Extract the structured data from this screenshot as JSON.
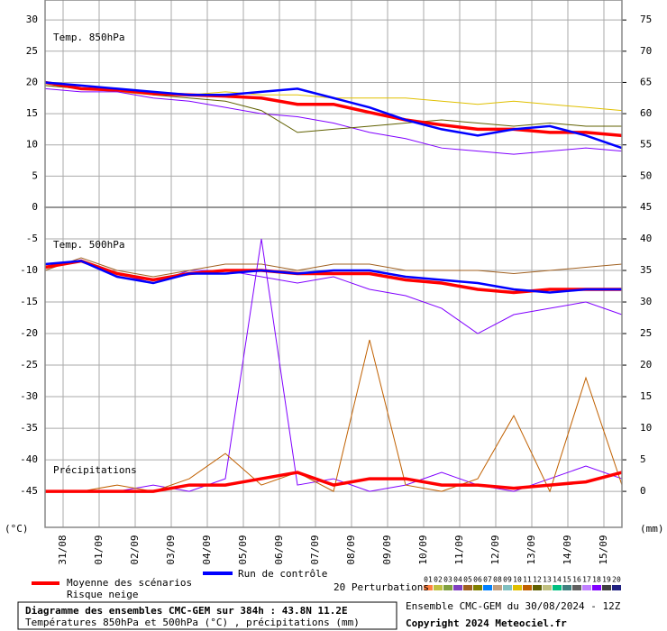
{
  "chart_data": [
    {
      "type": "line",
      "annotation": "Temp. 850hPa",
      "x": [
        0,
        24,
        48,
        72,
        96,
        120,
        144,
        168,
        192,
        216,
        240,
        264,
        288,
        312,
        336,
        360,
        384
      ],
      "xlim": [
        0,
        384
      ],
      "ylim": [
        0,
        33.2
      ],
      "yticks": [
        0,
        5,
        10,
        15,
        20,
        25,
        30
      ],
      "y2lim": [
        45,
        78.2
      ],
      "y2ticks": [
        50,
        55,
        60,
        65,
        70,
        75
      ],
      "grid": true,
      "series": [
        {
          "name": "Moyenne des scénarios",
          "color": "#ff0000",
          "values": [
            20,
            19,
            18.8,
            18.2,
            18,
            17.8,
            17.5,
            16.5,
            16.5,
            15.2,
            14,
            13.2,
            12.5,
            12.5,
            12,
            12,
            11.5
          ]
        },
        {
          "name": "Run de contrôle",
          "color": "#0000ff",
          "values": [
            20,
            19.5,
            19,
            18.5,
            18,
            18,
            18.5,
            19,
            17.5,
            16,
            14,
            12.5,
            11.5,
            12.5,
            13,
            11.5,
            9.5
          ]
        },
        {
          "color": "#e0c000",
          "values": [
            19.5,
            19,
            18.5,
            18,
            18,
            18.5,
            18,
            18,
            17.5,
            17.5,
            17.5,
            17,
            16.5,
            17,
            16.5,
            16,
            15.5
          ]
        },
        {
          "color": "#8000ff",
          "values": [
            19,
            18.5,
            18.5,
            17.5,
            17,
            16,
            15,
            14.5,
            13.5,
            12,
            11,
            9.5,
            9,
            8.5,
            9,
            9.5,
            9
          ]
        },
        {
          "color": "#606000",
          "values": [
            19.5,
            19,
            19,
            18,
            17.5,
            17,
            15.5,
            12,
            12.5,
            13,
            13.5,
            14,
            13.5,
            13,
            13.5,
            13,
            13
          ]
        }
      ]
    },
    {
      "type": "line",
      "annotation": "Temp. 500hPa",
      "annotation2": "Précipitations",
      "left_unit": "(°C)",
      "right_unit": "(mm)",
      "x": [
        0,
        24,
        48,
        72,
        96,
        120,
        144,
        168,
        192,
        216,
        240,
        264,
        288,
        312,
        336,
        360,
        384
      ],
      "xlim": [
        0,
        384
      ],
      "xticks": [
        {
          "value": 12,
          "label": "31/08"
        },
        {
          "value": 36,
          "label": "01/09"
        },
        {
          "value": 60,
          "label": "02/09"
        },
        {
          "value": 84,
          "label": "03/09"
        },
        {
          "value": 108,
          "label": "04/09"
        },
        {
          "value": 132,
          "label": "05/09"
        },
        {
          "value": 156,
          "label": "06/09"
        },
        {
          "value": 180,
          "label": "07/09"
        },
        {
          "value": 204,
          "label": "08/09"
        },
        {
          "value": 228,
          "label": "09/09"
        },
        {
          "value": 252,
          "label": "10/09"
        },
        {
          "value": 276,
          "label": "11/09"
        },
        {
          "value": 300,
          "label": "12/09"
        },
        {
          "value": 324,
          "label": "13/09"
        },
        {
          "value": 348,
          "label": "14/09"
        },
        {
          "value": 372,
          "label": "15/09"
        }
      ],
      "ylim": [
        -50.7,
        0
      ],
      "yticks": [
        -5,
        -10,
        -15,
        -20,
        -25,
        -30,
        -35,
        -40,
        -45
      ],
      "y2lim": [
        -5.7,
        45
      ],
      "y2ticks": [
        0,
        5,
        10,
        15,
        20,
        25,
        30,
        35,
        40,
        45
      ],
      "grid": true,
      "series": [
        {
          "color": "#ff0000",
          "values": [
            -9.5,
            -8.5,
            -10.5,
            -11.5,
            -10.5,
            -10,
            -10,
            -10.5,
            -10.5,
            -10.5,
            -11.5,
            -12,
            -13,
            -13.5,
            -13,
            -13,
            -13
          ]
        },
        {
          "color": "#0000ff",
          "values": [
            -9,
            -8.5,
            -11,
            -12,
            -10.5,
            -10.5,
            -10,
            -10.5,
            -10,
            -10,
            -11,
            -11.5,
            -12,
            -13,
            -13.5,
            -13,
            -13
          ]
        },
        {
          "color": "#8000ff",
          "values": [
            -9.5,
            -8.5,
            -10.5,
            -12,
            -10,
            -10,
            -11,
            -12,
            -11,
            -13,
            -14,
            -16,
            -20,
            -17,
            -16,
            -15,
            -17
          ]
        },
        {
          "color": "#a06020",
          "values": [
            -10,
            -8,
            -10,
            -11,
            -10,
            -9,
            -9,
            -10,
            -9,
            -9,
            -10,
            -10,
            -10,
            -10.5,
            -10,
            -9.5,
            -9
          ]
        },
        {
          "color": "#ff0000",
          "axis": "y2",
          "values": [
            0,
            0,
            0,
            0,
            1,
            1,
            2,
            3,
            1,
            2,
            2,
            1,
            1,
            0.5,
            1,
            1.5,
            3
          ]
        },
        {
          "color": "#8000ff",
          "axis": "y2",
          "values": [
            0,
            0,
            0,
            1,
            0,
            2,
            40,
            1,
            2,
            0,
            1,
            3,
            1,
            0,
            2,
            4,
            2
          ]
        },
        {
          "color": "#c06000",
          "axis": "y2",
          "values": [
            0,
            0,
            1,
            0,
            2,
            6,
            1,
            3,
            0,
            24,
            1,
            0,
            2,
            12,
            0,
            18,
            1
          ]
        }
      ]
    }
  ],
  "legend": {
    "snow_risk": "Risque neige",
    "perturbations": "20 Perturbations",
    "members": [
      {
        "label": "01",
        "color": "#ff8040"
      },
      {
        "label": "02",
        "color": "#c0c040"
      },
      {
        "label": "03",
        "color": "#80a040"
      },
      {
        "label": "04",
        "color": "#8040c0"
      },
      {
        "label": "05",
        "color": "#a06020"
      },
      {
        "label": "06",
        "color": "#808000"
      },
      {
        "label": "07",
        "color": "#0080ff"
      },
      {
        "label": "08",
        "color": "#c0a080"
      },
      {
        "label": "09",
        "color": "#80c0c0"
      },
      {
        "label": "10",
        "color": "#e0c000"
      },
      {
        "label": "11",
        "color": "#c06000"
      },
      {
        "label": "12",
        "color": "#606000"
      },
      {
        "label": "13",
        "color": "#c0c080"
      },
      {
        "label": "14",
        "color": "#00c080"
      },
      {
        "label": "15",
        "color": "#408080"
      },
      {
        "label": "16",
        "color": "#606060"
      },
      {
        "label": "17",
        "color": "#c080ff"
      },
      {
        "label": "18",
        "color": "#8000ff"
      },
      {
        "label": "19",
        "color": "#404040"
      },
      {
        "label": "20",
        "color": "#202080"
      }
    ]
  },
  "footer": {
    "title": "Diagramme des ensembles CMC-GEM sur 384h : 43.8N 11.2E",
    "subtitle": "Températures 850hPa et 500hPa (°C) , précipitations (mm)",
    "run": "Ensemble CMC-GEM du 30/08/2024 - 12Z",
    "copyright": "Copyright 2024 Meteociel.fr"
  }
}
